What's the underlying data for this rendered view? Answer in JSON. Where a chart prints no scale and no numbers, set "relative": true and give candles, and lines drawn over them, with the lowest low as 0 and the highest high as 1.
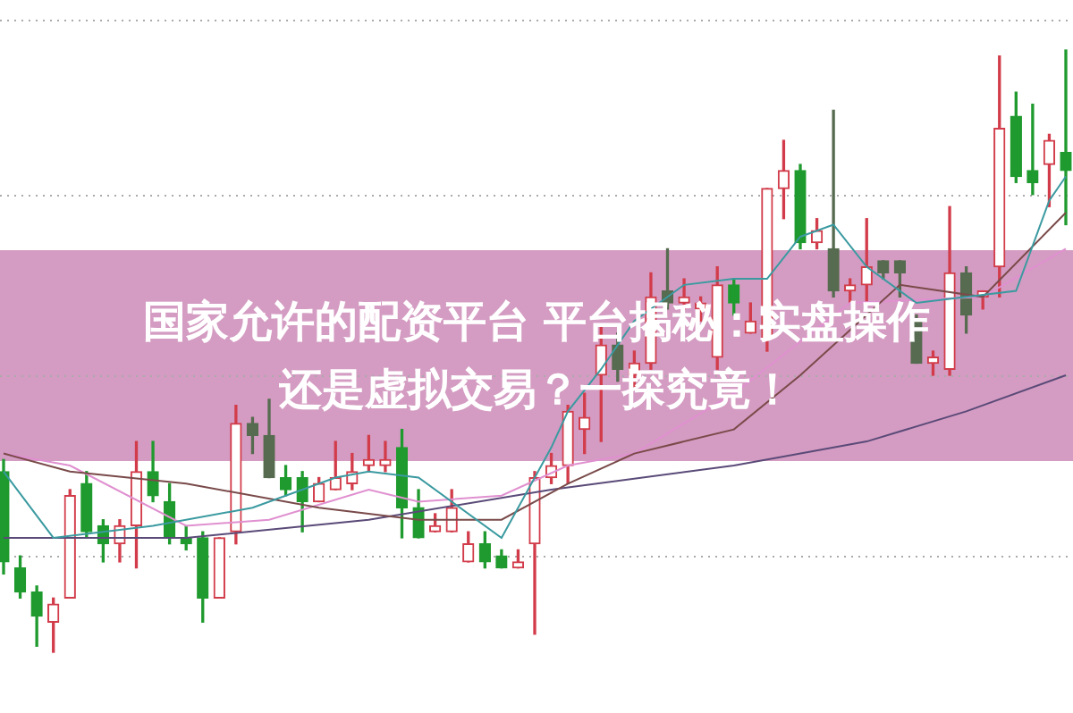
{
  "chart_data": {
    "type": "candlestick",
    "title": "国家允许的配资平台 平台揭秘：实盘操作还是虚拟交易？一探究竟！",
    "relative": true,
    "legend": false,
    "ref_lines": [
      {
        "axis": "y",
        "value": 1.05,
        "color": "#aaaaaa",
        "line_style": "dotted"
      },
      {
        "axis": "y",
        "value": 0.76,
        "color": "#aaaaaa",
        "line_style": "dotted"
      },
      {
        "axis": "y",
        "value": 0.46,
        "color": "#aaaaaa",
        "line_style": "dotted"
      },
      {
        "axis": "y",
        "value": 0.16,
        "color": "#aaaaaa",
        "line_style": "dotted"
      }
    ],
    "categories": [
      null,
      null,
      null,
      null,
      null,
      null,
      null,
      null,
      null,
      null,
      null,
      null,
      null,
      null,
      null,
      null,
      null,
      null,
      null,
      null,
      null,
      null,
      null,
      null,
      null,
      null,
      null,
      null,
      null,
      null,
      null,
      null,
      null,
      null,
      null,
      null,
      null,
      null,
      null,
      null,
      null,
      null,
      null,
      null,
      null,
      null,
      null,
      null,
      null,
      null,
      null,
      null,
      null,
      null,
      null,
      null,
      null,
      null,
      null,
      null,
      null,
      null,
      null,
      null,
      null
    ],
    "ohlc": [
      [
        0.3,
        0.32,
        0.13,
        0.15
      ],
      [
        0.14,
        0.16,
        0.09,
        0.1
      ],
      [
        0.1,
        0.11,
        0.01,
        0.06
      ],
      [
        0.05,
        0.09,
        0,
        0.08
      ],
      [
        0.09,
        0.27,
        0.09,
        0.26
      ],
      [
        0.28,
        0.3,
        0.19,
        0.2
      ],
      [
        0.21,
        0.22,
        0.15,
        0.18
      ],
      [
        0.18,
        0.22,
        0.15,
        0.21
      ],
      [
        0.21,
        0.35,
        0.14,
        0.3
      ],
      [
        0.3,
        0.35,
        0.25,
        0.26
      ],
      [
        0.25,
        0.28,
        0.18,
        0.19
      ],
      [
        0.19,
        0.21,
        0.17,
        0.18
      ],
      [
        0.19,
        0.2,
        0.05,
        0.09
      ],
      [
        0.09,
        0.19,
        0.09,
        0.19
      ],
      [
        0.2,
        0.41,
        0.18,
        0.38
      ],
      [
        0.38,
        0.39,
        0.33,
        0.36
      ],
      [
        0.36,
        0.42,
        0.29,
        0.29
      ],
      [
        0.29,
        0.31,
        0.26,
        0.27
      ],
      [
        0.29,
        0.3,
        0.2,
        0.25
      ],
      [
        0.25,
        0.29,
        0.25,
        0.28
      ],
      [
        0.27,
        0.35,
        0.27,
        0.29
      ],
      [
        0.28,
        0.33,
        0.27,
        0.3
      ],
      [
        0.31,
        0.36,
        0.3,
        0.32
      ],
      [
        0.31,
        0.35,
        0.3,
        0.32
      ],
      [
        0.34,
        0.37,
        0.19,
        0.24
      ],
      [
        0.24,
        0.27,
        0.19,
        0.19
      ],
      [
        0.2,
        0.23,
        0.2,
        0.21
      ],
      [
        0.2,
        0.27,
        0.2,
        0.24
      ],
      [
        0.15,
        0.2,
        0.15,
        0.18
      ],
      [
        0.18,
        0.2,
        0.14,
        0.15
      ],
      [
        0.16,
        0.17,
        0.14,
        0.14
      ],
      [
        0.14,
        0.17,
        0.14,
        0.15
      ],
      [
        0.18,
        0.3,
        0.03,
        0.29
      ],
      [
        0.29,
        0.33,
        0.28,
        0.31
      ],
      [
        0.31,
        0.41,
        0.28,
        0.4
      ],
      [
        0.37,
        0.43,
        0.33,
        0.39
      ],
      [
        0.46,
        0.54,
        0.35,
        0.51
      ],
      [
        0.51,
        0.53,
        0.45,
        0.47
      ],
      [
        0.46,
        0.5,
        0.44,
        0.48
      ],
      [
        0.48,
        0.63,
        0.47,
        0.59
      ],
      [
        0.6,
        0.67,
        0.57,
        0.58
      ],
      [
        0.58,
        0.62,
        0.57,
        0.59
      ],
      [
        0.57,
        0.59,
        0.55,
        0.58
      ],
      [
        0.49,
        0.64,
        0.47,
        0.61
      ],
      [
        0.61,
        0.62,
        0.56,
        0.58
      ],
      [
        0.53,
        0.58,
        0.53,
        0.55
      ],
      [
        0.52,
        0.77,
        0.5,
        0.77
      ],
      [
        0.77,
        0.85,
        0.72,
        0.8
      ],
      [
        0.8,
        0.81,
        0.67,
        0.68
      ],
      [
        0.68,
        0.72,
        0.67,
        0.7
      ],
      [
        0.67,
        0.9,
        0.59,
        0.6
      ],
      [
        0.6,
        0.62,
        0.58,
        0.61
      ],
      [
        0.61,
        0.72,
        0.58,
        0.64
      ],
      [
        0.65,
        0.65,
        0.62,
        0.63
      ],
      [
        0.65,
        0.65,
        0.59,
        0.63
      ],
      [
        0.55,
        0.56,
        0.48,
        0.48
      ],
      [
        0.48,
        0.5,
        0.46,
        0.49
      ],
      [
        0.47,
        0.74,
        0.46,
        0.63
      ],
      [
        0.63,
        0.64,
        0.53,
        0.56
      ],
      [
        0.59,
        0.6,
        0.57,
        0.6
      ],
      [
        0.64,
        0.99,
        0.59,
        0.87
      ],
      [
        0.89,
        0.93,
        0.78,
        0.79
      ],
      [
        0.8,
        0.91,
        0.76,
        0.78
      ],
      [
        0.81,
        0.86,
        0.74,
        0.85
      ],
      [
        0.83,
        1,
        0.71,
        0.8
      ]
    ],
    "colors": [
      "#1f9a2e",
      "#1f9a2e",
      "#1f9a2e",
      "#d23c4a",
      "#d23c4a",
      "#1f9a2e",
      "#1f9a2e",
      "#d23c4a",
      "#d23c4a",
      "#1f9a2e",
      "#1f9a2e",
      "#1f9a2e",
      "#1f9a2e",
      "#d23c4a",
      "#d23c4a",
      "#566b4f",
      "#566b4f",
      "#1f9a2e",
      "#1f9a2e",
      "#d23c4a",
      "#d23c4a",
      "#d23c4a",
      "#d23c4a",
      "#d23c4a",
      "#1f9a2e",
      "#1f9a2e",
      "#d23c4a",
      "#d23c4a",
      "#d23c4a",
      "#1f9a2e",
      "#1f9a2e",
      "#d23c4a",
      "#d23c4a",
      "#d23c4a",
      "#d23c4a",
      "#d23c4a",
      "#d23c4a",
      "#566b4f",
      "#d23c4a",
      "#d23c4a",
      "#566b4f",
      "#d23c4a",
      "#d23c4a",
      "#d23c4a",
      "#1f9a2e",
      "#d23c4a",
      "#d23c4a",
      "#d23c4a",
      "#1f9a2e",
      "#d23c4a",
      "#566b4f",
      "#d23c4a",
      "#d23c4a",
      "#566b4f",
      "#566b4f",
      "#566b4f",
      "#d23c4a",
      "#d23c4a",
      "#566b4f",
      "#d23c4a",
      "#d23c4a",
      "#1f9a2e",
      "#1f9a2e",
      "#d23c4a",
      "#1f9a2e"
    ],
    "series": [
      {
        "type": "line",
        "color": "#3a9aa0",
        "values": [
          0.3,
          null,
          null,
          0.19,
          null,
          null,
          0.2,
          null,
          null,
          0.21,
          null,
          null,
          null,
          null,
          null,
          0.24,
          null,
          null,
          null,
          null,
          0.29,
          null,
          0.3,
          null,
          null,
          0.29,
          null,
          null,
          null,
          null,
          0.19,
          null,
          null,
          0.34,
          0.4,
          null,
          0.47,
          null,
          0.55,
          null,
          null,
          0.61,
          null,
          null,
          0.62,
          null,
          0.62,
          null,
          0.69,
          null,
          0.71,
          null,
          0.64,
          null,
          null,
          0.58,
          null,
          null,
          null,
          null,
          null,
          0.6,
          null,
          0.75,
          0.79
        ]
      },
      {
        "type": "line",
        "color": "#7a4a4a",
        "values": [
          0.33,
          null,
          null,
          null,
          0.3,
          null,
          null,
          null,
          null,
          null,
          null,
          0.28,
          null,
          null,
          null,
          null,
          null,
          null,
          null,
          0.24,
          null,
          null,
          null,
          null,
          null,
          0.22,
          null,
          null,
          null,
          null,
          0.22,
          null,
          null,
          null,
          0.28,
          null,
          null,
          null,
          0.33,
          null,
          null,
          null,
          null,
          null,
          0.37,
          null,
          null,
          null,
          0.46,
          null,
          null,
          null,
          null,
          null,
          0.61,
          null,
          null,
          null,
          null,
          0.59,
          null,
          null,
          null,
          null,
          0.73
        ]
      },
      {
        "type": "line",
        "color": "#e090d0",
        "values": [
          0.33,
          null,
          null,
          null,
          0.31,
          null,
          null,
          null,
          null,
          null,
          null,
          0.21,
          null,
          null,
          null,
          null,
          0.22,
          null,
          null,
          null,
          null,
          null,
          0.27,
          null,
          null,
          0.25,
          null,
          null,
          null,
          null,
          0.26,
          null,
          null,
          null,
          0.31,
          null,
          null,
          null,
          0.33,
          null,
          null,
          null,
          null,
          null,
          0.43,
          null,
          null,
          null,
          null,
          null,
          null,
          0.58,
          null,
          null,
          null,
          null,
          null,
          null,
          null,
          0.59,
          null,
          null,
          null,
          null,
          0.67
        ]
      },
      {
        "type": "line",
        "color": "#5a4a78",
        "values": [
          0.19,
          null,
          null,
          null,
          null,
          null,
          null,
          null,
          null,
          null,
          null,
          0.19,
          null,
          null,
          null,
          null,
          null,
          null,
          null,
          null,
          null,
          null,
          0.22,
          null,
          null,
          null,
          null,
          null,
          null,
          null,
          null,
          null,
          null,
          0.27,
          null,
          null,
          null,
          null,
          null,
          null,
          null,
          null,
          null,
          null,
          0.31,
          null,
          null,
          null,
          null,
          null,
          null,
          null,
          0.35,
          null,
          null,
          null,
          null,
          null,
          0.4,
          null,
          null,
          null,
          null,
          null,
          0.46
        ]
      }
    ]
  }
}
